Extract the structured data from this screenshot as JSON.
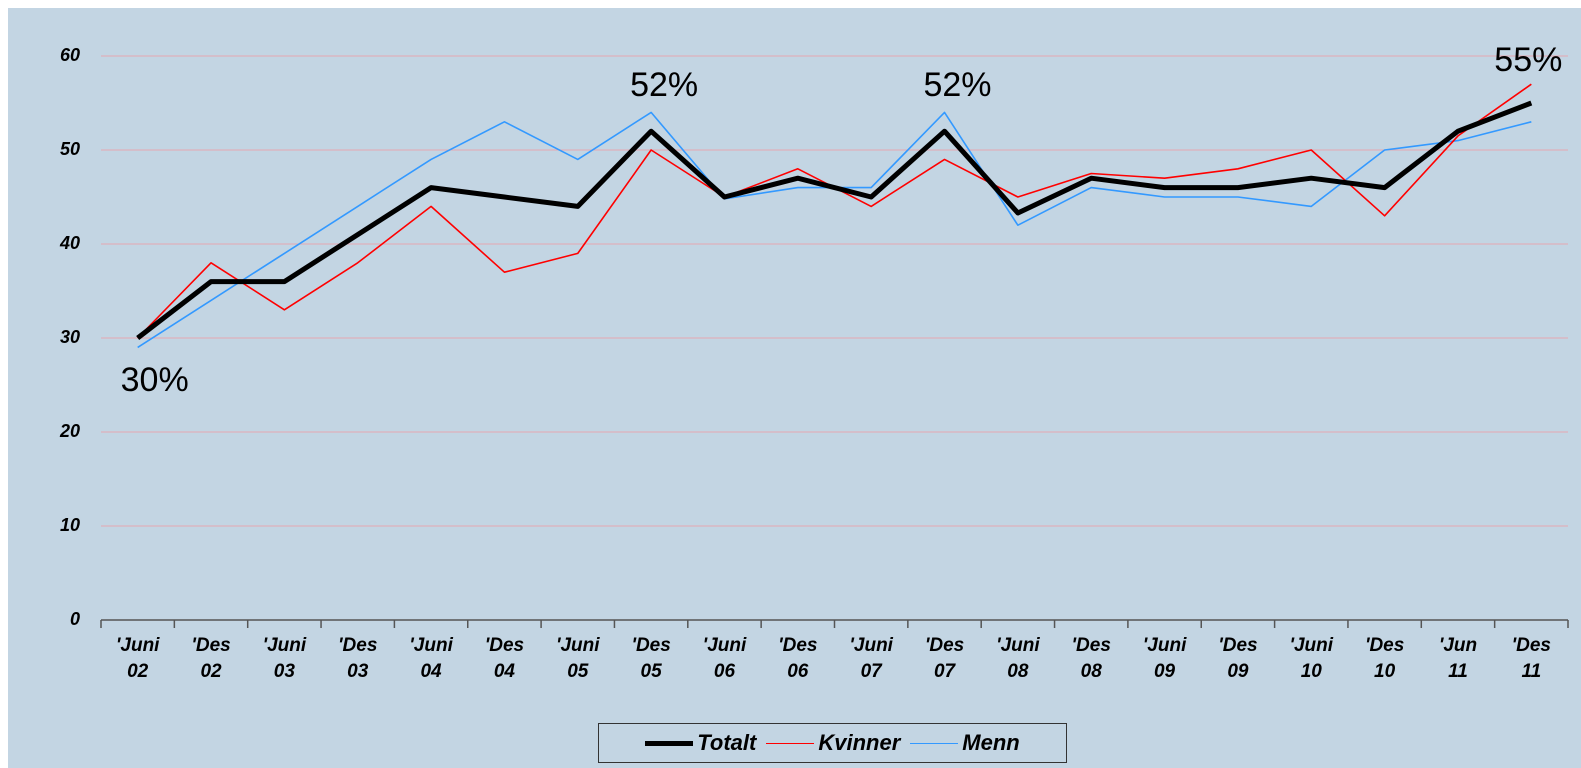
{
  "chart_data": {
    "type": "line",
    "categories": [
      "'Juni 02",
      "'Des 02",
      "'Juni 03",
      "'Des 03",
      "'Juni 04",
      "'Des 04",
      "'Juni 05",
      "'Des 05",
      "'Juni 06",
      "'Des 06",
      "'Juni 07",
      "'Des 07",
      "'Juni 08",
      "'Des 08",
      "'Juni 09",
      "'Des 09",
      "'Juni 10",
      "'Des 10",
      "'Jun 11",
      "'Des 11"
    ],
    "series": [
      {
        "name": "Totalt",
        "color": "#000000",
        "values": [
          30,
          36,
          36,
          41,
          46,
          45,
          44,
          52,
          45,
          47,
          45,
          52,
          43.3,
          47,
          46,
          46,
          47,
          46,
          52,
          55
        ],
        "value_labels": [
          "30%",
          null,
          null,
          null,
          null,
          null,
          null,
          "52%",
          null,
          null,
          null,
          "52%",
          null,
          null,
          null,
          null,
          null,
          null,
          null,
          "55%"
        ]
      },
      {
        "name": "Kvinner",
        "color": "#ff0000",
        "values": [
          30,
          38,
          33,
          38,
          44,
          37,
          39,
          50,
          45,
          48,
          44,
          49,
          45,
          47.5,
          47,
          48,
          50,
          43,
          51.5,
          57
        ]
      },
      {
        "name": "Menn",
        "color": "#3399ff",
        "values": [
          29,
          34,
          39,
          44,
          49,
          53,
          49,
          54,
          44.8,
          46,
          46,
          54,
          42,
          46,
          45,
          45,
          44,
          50,
          51,
          53
        ]
      }
    ],
    "ylim": [
      0,
      60
    ],
    "yticks": [
      0,
      10,
      20,
      30,
      40,
      50,
      60
    ],
    "grid": true,
    "legend": "bottom"
  }
}
